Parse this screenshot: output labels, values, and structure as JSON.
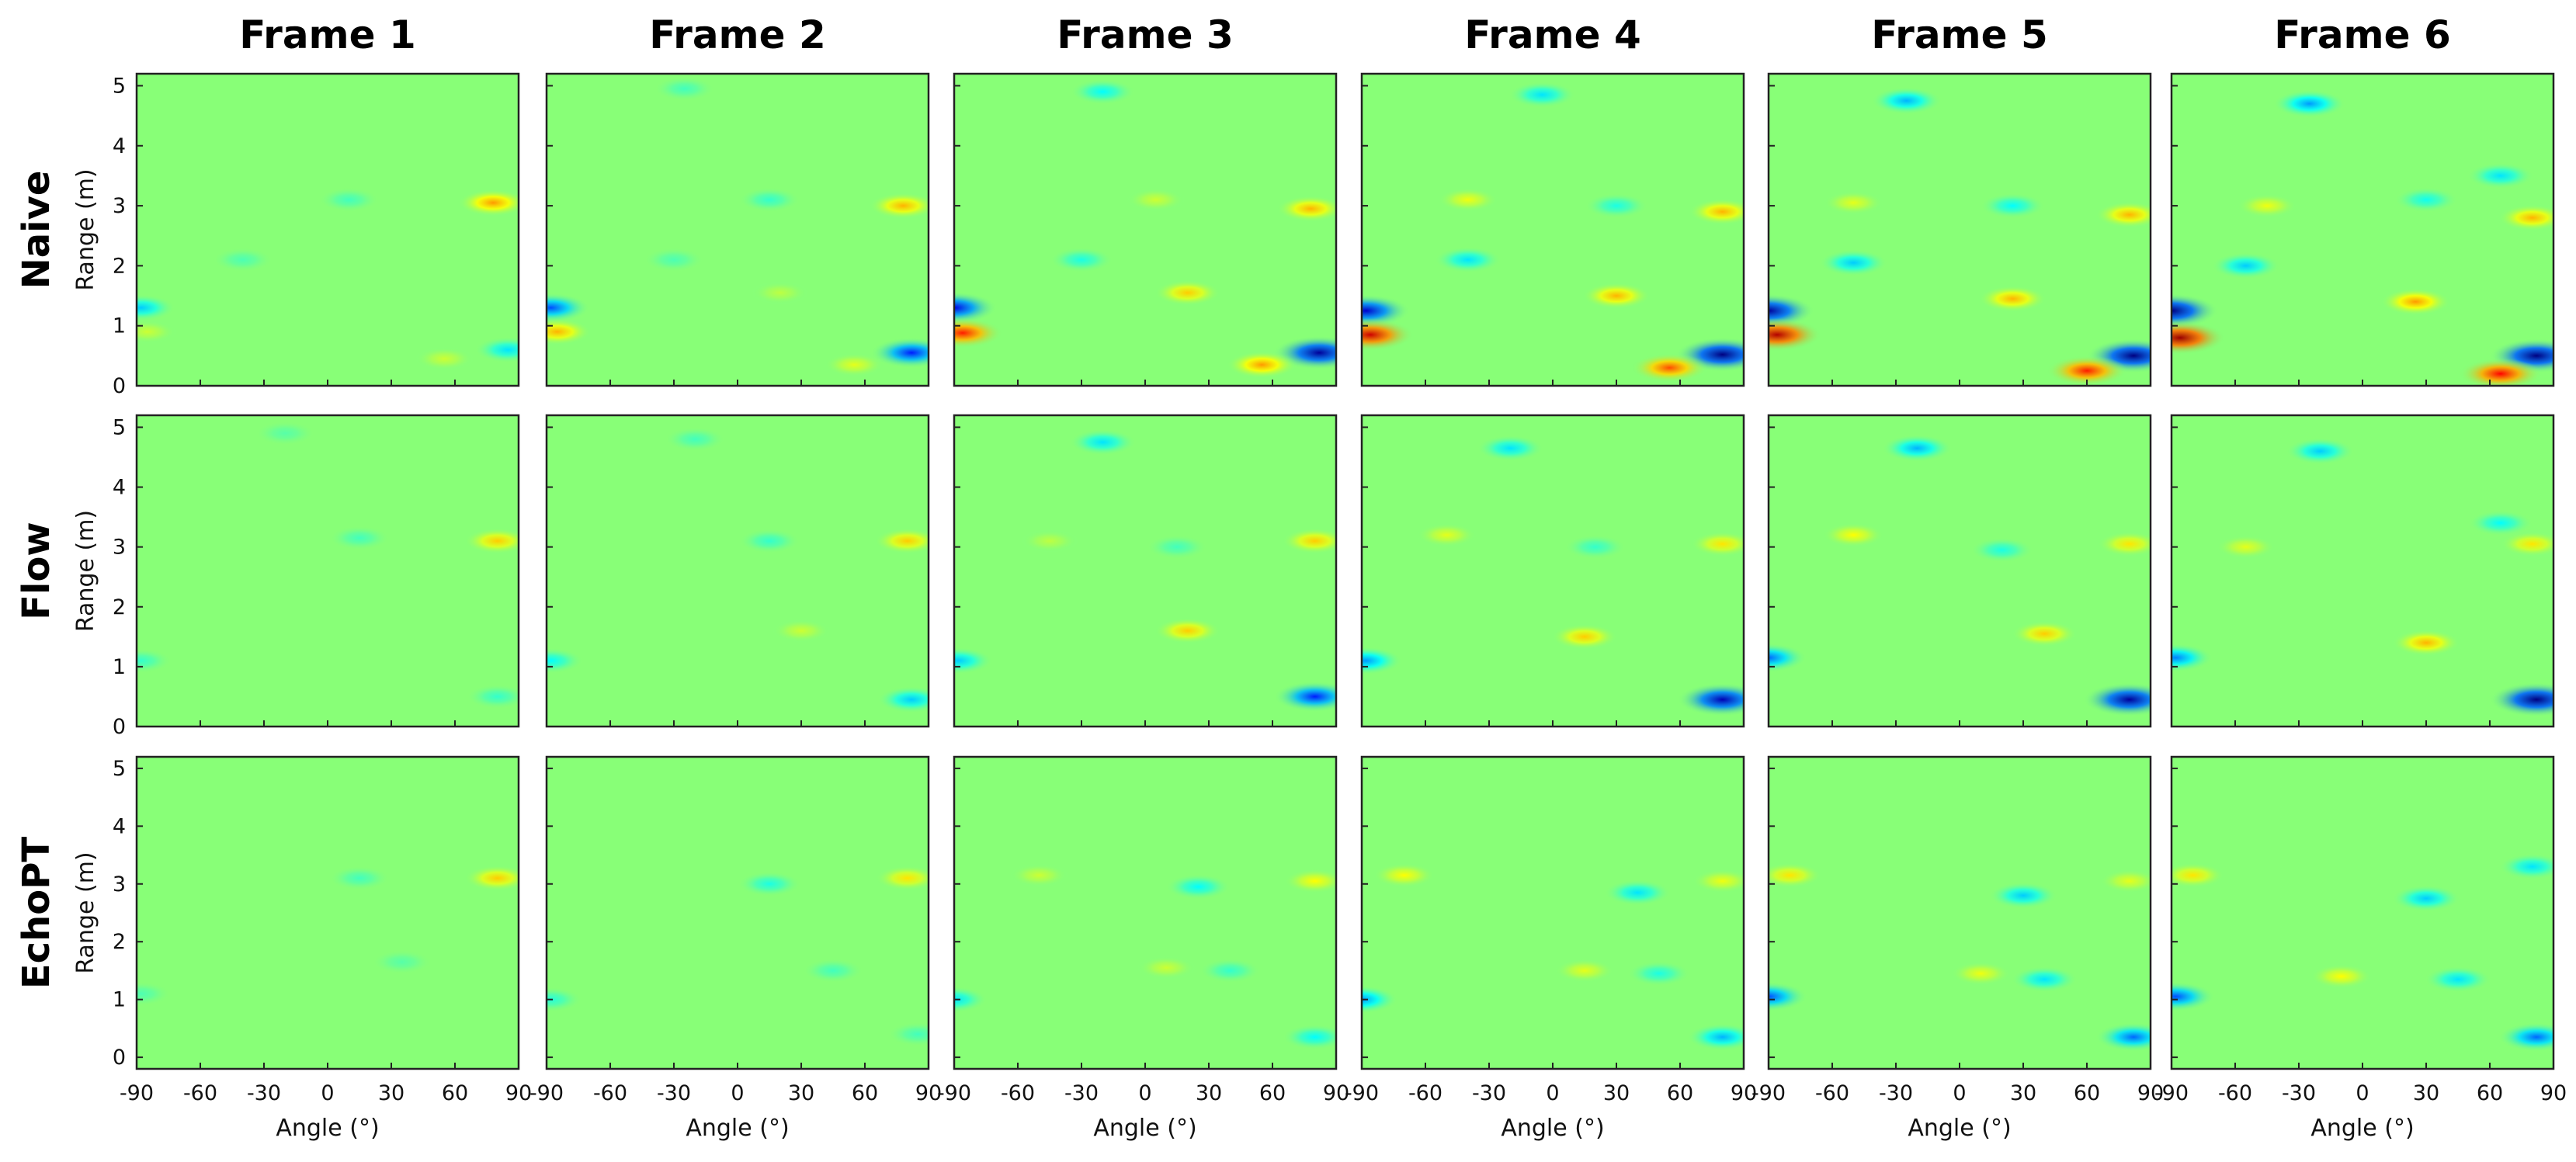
{
  "chart_data": {
    "type": "heatmap",
    "columns": [
      "Frame 1",
      "Frame 2",
      "Frame 3",
      "Frame 4",
      "Frame 5",
      "Frame 6"
    ],
    "rows": [
      "Naive",
      "Flow",
      "EchoPT"
    ],
    "xlabel": "Angle (°)",
    "ylabel": "Range (m)",
    "x_ticks": [
      "-90",
      "-60",
      "-30",
      "0",
      "30",
      "60",
      "90"
    ],
    "x_tick_values": [
      -90,
      -60,
      -30,
      0,
      30,
      60,
      90
    ],
    "y_ticks": [
      "0",
      "1",
      "2",
      "3",
      "4",
      "5"
    ],
    "y_tick_values": [
      0,
      1,
      2,
      3,
      4,
      5
    ],
    "xlim": [
      -90,
      90
    ],
    "ylim_top_rows": [
      0,
      5.2
    ],
    "ylim_bottom_row": [
      -0.2,
      5.2
    ],
    "colormap": "jet",
    "background_color": "#88ff77",
    "grid": false,
    "blobs": {
      "Naive": [
        [
          {
            "angle": -88,
            "range": 1.3,
            "value": -0.35
          },
          {
            "angle": -85,
            "range": 0.9,
            "value": 0.15
          },
          {
            "angle": 85,
            "range": 0.6,
            "value": -0.3
          },
          {
            "angle": 55,
            "range": 0.45,
            "value": 0.15
          },
          {
            "angle": 78,
            "range": 3.05,
            "value": 0.45
          },
          {
            "angle": 10,
            "range": 3.1,
            "value": -0.12
          },
          {
            "angle": -40,
            "range": 2.1,
            "value": -0.1
          }
        ],
        [
          {
            "angle": -88,
            "range": 1.3,
            "value": -0.6
          },
          {
            "angle": -85,
            "range": 0.9,
            "value": 0.4
          },
          {
            "angle": 82,
            "range": 0.55,
            "value": -0.7
          },
          {
            "angle": 55,
            "range": 0.35,
            "value": 0.2
          },
          {
            "angle": 78,
            "range": 3.0,
            "value": 0.4
          },
          {
            "angle": 15,
            "range": 3.1,
            "value": -0.15
          },
          {
            "angle": -30,
            "range": 2.1,
            "value": -0.1
          },
          {
            "angle": -25,
            "range": 4.95,
            "value": -0.12
          },
          {
            "angle": 20,
            "range": 1.55,
            "value": 0.12
          }
        ],
        [
          {
            "angle": -90,
            "range": 1.3,
            "value": -0.8
          },
          {
            "angle": -86,
            "range": 0.88,
            "value": 0.7
          },
          {
            "angle": 82,
            "range": 0.55,
            "value": -0.95
          },
          {
            "angle": 55,
            "range": 0.35,
            "value": 0.45
          },
          {
            "angle": 78,
            "range": 2.95,
            "value": 0.4
          },
          {
            "angle": 5,
            "range": 3.1,
            "value": 0.15
          },
          {
            "angle": -30,
            "range": 2.1,
            "value": -0.2
          },
          {
            "angle": -20,
            "range": 4.9,
            "value": -0.25
          },
          {
            "angle": 20,
            "range": 1.55,
            "value": 0.35
          }
        ],
        [
          {
            "angle": -88,
            "range": 1.25,
            "value": -0.85
          },
          {
            "angle": -86,
            "range": 0.85,
            "value": 0.85
          },
          {
            "angle": 80,
            "range": 0.52,
            "value": -1.0
          },
          {
            "angle": 55,
            "range": 0.3,
            "value": 0.6
          },
          {
            "angle": 80,
            "range": 2.9,
            "value": 0.4
          },
          {
            "angle": -40,
            "range": 3.1,
            "value": 0.22
          },
          {
            "angle": 30,
            "range": 3.0,
            "value": -0.2
          },
          {
            "angle": -40,
            "range": 2.1,
            "value": -0.3
          },
          {
            "angle": -5,
            "range": 4.85,
            "value": -0.3
          },
          {
            "angle": 30,
            "range": 1.5,
            "value": 0.4
          }
        ],
        [
          {
            "angle": -90,
            "range": 1.25,
            "value": -0.95
          },
          {
            "angle": -86,
            "range": 0.85,
            "value": 0.9
          },
          {
            "angle": 82,
            "range": 0.5,
            "value": -1.0
          },
          {
            "angle": 60,
            "range": 0.25,
            "value": 0.7
          },
          {
            "angle": 80,
            "range": 2.85,
            "value": 0.4
          },
          {
            "angle": -50,
            "range": 3.05,
            "value": 0.2
          },
          {
            "angle": 25,
            "range": 3.0,
            "value": -0.25
          },
          {
            "angle": -50,
            "range": 2.05,
            "value": -0.35
          },
          {
            "angle": -25,
            "range": 4.75,
            "value": -0.4
          },
          {
            "angle": 25,
            "range": 1.45,
            "value": 0.4
          }
        ],
        [
          {
            "angle": -90,
            "range": 1.25,
            "value": -1.0
          },
          {
            "angle": -86,
            "range": 0.8,
            "value": 0.95
          },
          {
            "angle": 82,
            "range": 0.5,
            "value": -1.0
          },
          {
            "angle": 65,
            "range": 0.2,
            "value": 0.75
          },
          {
            "angle": 80,
            "range": 2.8,
            "value": 0.4
          },
          {
            "angle": -45,
            "range": 3.0,
            "value": 0.22
          },
          {
            "angle": 30,
            "range": 3.1,
            "value": -0.22
          },
          {
            "angle": -55,
            "range": 2.0,
            "value": -0.35
          },
          {
            "angle": -25,
            "range": 4.7,
            "value": -0.45
          },
          {
            "angle": 25,
            "range": 1.4,
            "value": 0.45
          },
          {
            "angle": 65,
            "range": 3.5,
            "value": -0.3
          }
        ]
      ],
      "Flow": [
        [
          {
            "angle": -88,
            "range": 1.1,
            "value": -0.15
          },
          {
            "angle": 80,
            "range": 3.1,
            "value": 0.35
          },
          {
            "angle": 15,
            "range": 3.15,
            "value": -0.12
          },
          {
            "angle": 80,
            "range": 0.5,
            "value": -0.15
          },
          {
            "angle": -20,
            "range": 4.9,
            "value": -0.08
          }
        ],
        [
          {
            "angle": -88,
            "range": 1.1,
            "value": -0.25
          },
          {
            "angle": 80,
            "range": 3.1,
            "value": 0.35
          },
          {
            "angle": 15,
            "range": 3.1,
            "value": -0.15
          },
          {
            "angle": 82,
            "range": 0.45,
            "value": -0.35
          },
          {
            "angle": -20,
            "range": 4.8,
            "value": -0.12
          },
          {
            "angle": 30,
            "range": 1.6,
            "value": 0.15
          }
        ],
        [
          {
            "angle": -88,
            "range": 1.1,
            "value": -0.35
          },
          {
            "angle": 80,
            "range": 3.1,
            "value": 0.35
          },
          {
            "angle": 15,
            "range": 3.0,
            "value": -0.12
          },
          {
            "angle": 80,
            "range": 0.5,
            "value": -0.7
          },
          {
            "angle": -20,
            "range": 4.75,
            "value": -0.3
          },
          {
            "angle": 20,
            "range": 1.6,
            "value": 0.35
          },
          {
            "angle": -45,
            "range": 3.1,
            "value": 0.12
          }
        ],
        [
          {
            "angle": -88,
            "range": 1.1,
            "value": -0.45
          },
          {
            "angle": 80,
            "range": 3.05,
            "value": 0.3
          },
          {
            "angle": 20,
            "range": 3.0,
            "value": -0.15
          },
          {
            "angle": 80,
            "range": 0.45,
            "value": -0.9
          },
          {
            "angle": -20,
            "range": 4.65,
            "value": -0.3
          },
          {
            "angle": 15,
            "range": 1.5,
            "value": 0.35
          },
          {
            "angle": -50,
            "range": 3.2,
            "value": 0.2
          }
        ],
        [
          {
            "angle": -90,
            "range": 1.15,
            "value": -0.55
          },
          {
            "angle": 80,
            "range": 3.05,
            "value": 0.3
          },
          {
            "angle": 20,
            "range": 2.95,
            "value": -0.2
          },
          {
            "angle": 80,
            "range": 0.45,
            "value": -0.95
          },
          {
            "angle": -20,
            "range": 4.65,
            "value": -0.4
          },
          {
            "angle": 40,
            "range": 1.55,
            "value": 0.35
          },
          {
            "angle": -50,
            "range": 3.2,
            "value": 0.25
          }
        ],
        [
          {
            "angle": -88,
            "range": 1.15,
            "value": -0.5
          },
          {
            "angle": 80,
            "range": 3.05,
            "value": 0.3
          },
          {
            "angle": 65,
            "range": 3.4,
            "value": -0.25
          },
          {
            "angle": 82,
            "range": 0.45,
            "value": -1.0
          },
          {
            "angle": -20,
            "range": 4.6,
            "value": -0.35
          },
          {
            "angle": 30,
            "range": 1.4,
            "value": 0.4
          },
          {
            "angle": -55,
            "range": 3.0,
            "value": 0.2
          }
        ]
      ],
      "EchoPT": [
        [
          {
            "angle": -88,
            "range": 1.1,
            "value": -0.1
          },
          {
            "angle": 80,
            "range": 3.1,
            "value": 0.35
          },
          {
            "angle": 15,
            "range": 3.1,
            "value": -0.12
          },
          {
            "angle": 35,
            "range": 1.65,
            "value": -0.08
          }
        ],
        [
          {
            "angle": -88,
            "range": 1.0,
            "value": -0.18
          },
          {
            "angle": 80,
            "range": 3.1,
            "value": 0.3
          },
          {
            "angle": 15,
            "range": 3.0,
            "value": -0.2
          },
          {
            "angle": 45,
            "range": 1.5,
            "value": -0.12
          },
          {
            "angle": 85,
            "range": 0.4,
            "value": -0.12
          }
        ],
        [
          {
            "angle": -90,
            "range": 1.0,
            "value": -0.3
          },
          {
            "angle": 80,
            "range": 3.05,
            "value": 0.25
          },
          {
            "angle": 25,
            "range": 2.95,
            "value": -0.25
          },
          {
            "angle": 40,
            "range": 1.5,
            "value": -0.15
          },
          {
            "angle": 80,
            "range": 0.35,
            "value": -0.25
          },
          {
            "angle": -50,
            "range": 3.15,
            "value": 0.15
          },
          {
            "angle": 10,
            "range": 1.55,
            "value": 0.15
          }
        ],
        [
          {
            "angle": -90,
            "range": 1.0,
            "value": -0.45
          },
          {
            "angle": 80,
            "range": 3.05,
            "value": 0.22
          },
          {
            "angle": 40,
            "range": 2.85,
            "value": -0.3
          },
          {
            "angle": 50,
            "range": 1.45,
            "value": -0.2
          },
          {
            "angle": 80,
            "range": 0.35,
            "value": -0.4
          },
          {
            "angle": -70,
            "range": 3.15,
            "value": 0.25
          },
          {
            "angle": 15,
            "range": 1.5,
            "value": 0.2
          }
        ],
        [
          {
            "angle": -90,
            "range": 1.05,
            "value": -0.6
          },
          {
            "angle": 80,
            "range": 3.05,
            "value": 0.2
          },
          {
            "angle": 30,
            "range": 2.8,
            "value": -0.35
          },
          {
            "angle": 40,
            "range": 1.35,
            "value": -0.3
          },
          {
            "angle": 82,
            "range": 0.35,
            "value": -0.55
          },
          {
            "angle": -80,
            "range": 3.15,
            "value": 0.3
          },
          {
            "angle": 10,
            "range": 1.45,
            "value": 0.22
          }
        ],
        [
          {
            "angle": -88,
            "range": 1.05,
            "value": -0.6
          },
          {
            "angle": 80,
            "range": 3.3,
            "value": -0.3
          },
          {
            "angle": 30,
            "range": 2.75,
            "value": -0.35
          },
          {
            "angle": 45,
            "range": 1.35,
            "value": -0.3
          },
          {
            "angle": 82,
            "range": 0.35,
            "value": -0.55
          },
          {
            "angle": -80,
            "range": 3.15,
            "value": 0.3
          },
          {
            "angle": -10,
            "range": 1.4,
            "value": 0.25
          }
        ]
      ]
    }
  }
}
